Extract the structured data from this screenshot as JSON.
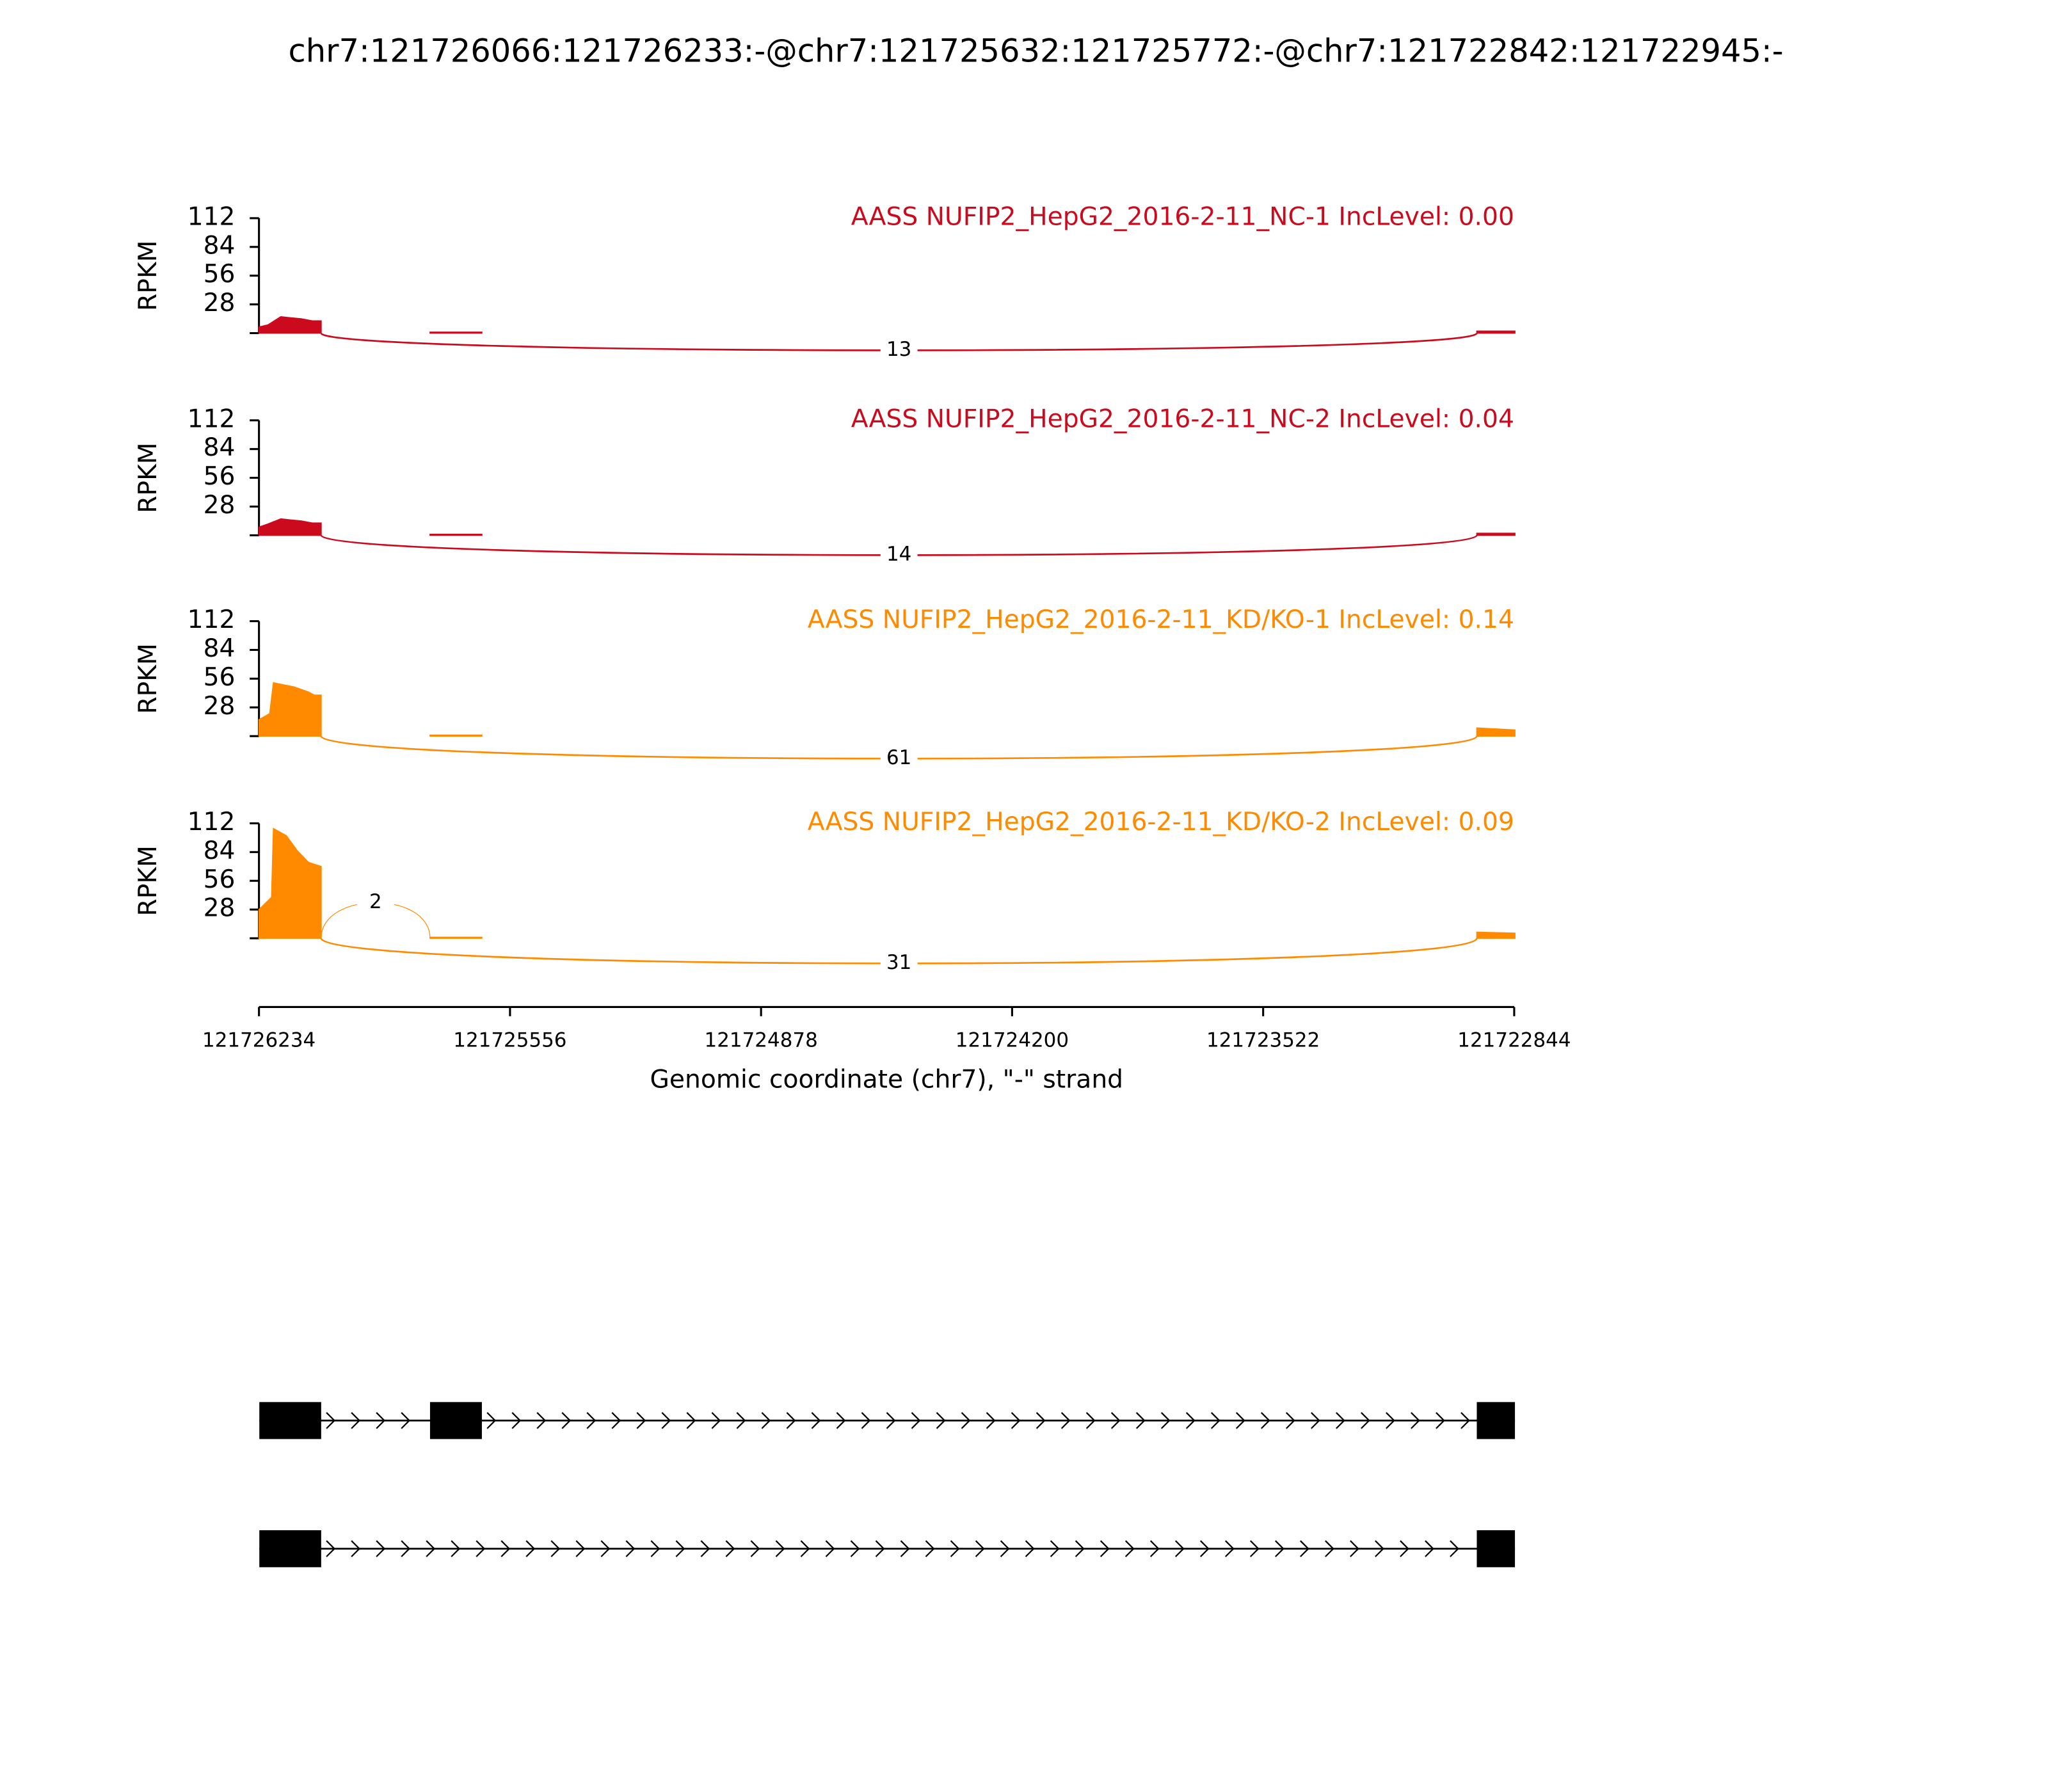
{
  "chart_data": {
    "type": "sashimi",
    "title": "chr7:121726066:121726233:-@chr7:121725632:121725772:-@chr7:121722842:121722945:-",
    "xlabel": "Genomic coordinate (chr7), \"-\" strand",
    "xlim": [
      121726234,
      121722844
    ],
    "xticks": [
      121726234,
      121725556,
      121724878,
      121724200,
      121723522,
      121722844
    ],
    "panels": [
      {
        "label": "AASS NUFIP2_HepG2_2016-2-11_NC-1 IncLevel: 0.00",
        "color": "#cc0a1e",
        "ylabel": "RPKM",
        "ylim": [
          0,
          112
        ],
        "yticks": [
          28,
          56,
          84,
          112
        ],
        "x": [
          121726234,
          121726210,
          121726175,
          121726150,
          121726120,
          121726090,
          121726066,
          null,
          121725772,
          121725632,
          null,
          121722945,
          121722842
        ],
        "values": [
          6,
          8,
          16,
          15,
          14,
          12,
          12,
          null,
          1,
          1,
          null,
          2,
          2
        ],
        "junctions": [
          {
            "start": 121726066,
            "end": 121722945,
            "count": 13,
            "side": "below"
          }
        ]
      },
      {
        "label": "AASS NUFIP2_HepG2_2016-2-11_NC-2 IncLevel: 0.04",
        "color": "#cc0a1e",
        "ylabel": "RPKM",
        "ylim": [
          0,
          112
        ],
        "yticks": [
          28,
          56,
          84,
          112
        ],
        "x": [
          121726234,
          121726210,
          121726175,
          121726150,
          121726120,
          121726090,
          121726066,
          null,
          121725772,
          121725632,
          null,
          121722945,
          121722842
        ],
        "values": [
          8,
          11,
          16,
          15,
          14,
          12,
          12,
          null,
          1,
          1,
          null,
          2,
          2
        ],
        "junctions": [
          {
            "start": 121726066,
            "end": 121722945,
            "count": 14,
            "side": "below"
          }
        ]
      },
      {
        "label": "AASS NUFIP2_HepG2_2016-2-11_KD/KO-1 IncLevel: 0.14",
        "color": "#ff8a00",
        "ylabel": "RPKM",
        "ylim": [
          0,
          112
        ],
        "yticks": [
          28,
          56,
          84,
          112
        ],
        "x": [
          121726234,
          121726205,
          121726195,
          121726140,
          121726100,
          121726085,
          121726066,
          null,
          121725772,
          121725632,
          null,
          121722945,
          121722842
        ],
        "values": [
          16,
          22,
          52,
          48,
          43,
          40,
          40,
          null,
          1,
          1,
          null,
          8,
          6
        ],
        "junctions": [
          {
            "start": 121726066,
            "end": 121722945,
            "count": 61,
            "side": "below"
          }
        ]
      },
      {
        "label": "AASS NUFIP2_HepG2_2016-2-11_KD/KO-2 IncLevel: 0.09",
        "color": "#ff8a00",
        "ylabel": "RPKM",
        "ylim": [
          0,
          112
        ],
        "yticks": [
          28,
          56,
          84,
          112
        ],
        "x": [
          121726234,
          121726200,
          121726195,
          121726160,
          121726130,
          121726100,
          121726066,
          null,
          121725772,
          121725632,
          null,
          121722945,
          121722842
        ],
        "values": [
          28,
          40,
          107,
          100,
          85,
          74,
          70,
          null,
          1,
          1,
          null,
          6,
          5
        ],
        "junctions": [
          {
            "start": 121726066,
            "end": 121725772,
            "count": 2,
            "side": "above"
          },
          {
            "start": 121726066,
            "end": 121722945,
            "count": 31,
            "side": "below"
          }
        ]
      }
    ],
    "transcripts": [
      {
        "exons": [
          [
            121726233,
            121726066
          ],
          [
            121725772,
            121725632
          ],
          [
            121722945,
            121722842
          ]
        ]
      },
      {
        "exons": [
          [
            121726233,
            121726066
          ],
          [
            121722945,
            121722842
          ]
        ]
      }
    ]
  }
}
